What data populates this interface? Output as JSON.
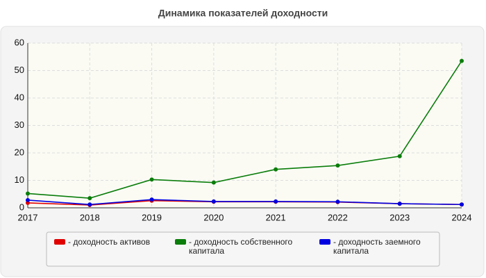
{
  "chart_data": {
    "type": "line",
    "title": "Динамика показателей доходности",
    "categories": [
      "2017",
      "2018",
      "2019",
      "2020",
      "2021",
      "2022",
      "2023",
      "2024"
    ],
    "series": [
      {
        "name": "- доходность активов",
        "color": "#e00000",
        "values": [
          1.8,
          1.0,
          2.6,
          2.2,
          2.2,
          2.1,
          1.5,
          1.2
        ]
      },
      {
        "name": "- доходность собственного капитала",
        "color": "#0a7d0a",
        "values": [
          5.2,
          3.5,
          10.3,
          9.2,
          14.0,
          15.4,
          18.8,
          53.5
        ]
      },
      {
        "name": "- доходность заемного капитала",
        "color": "#0000e0",
        "values": [
          2.8,
          1.2,
          3.0,
          2.3,
          2.3,
          2.2,
          1.5,
          1.2
        ]
      }
    ],
    "ylim": [
      0,
      60
    ],
    "yticks": [
      0,
      10,
      20,
      30,
      40,
      50,
      60
    ],
    "grid": true
  }
}
